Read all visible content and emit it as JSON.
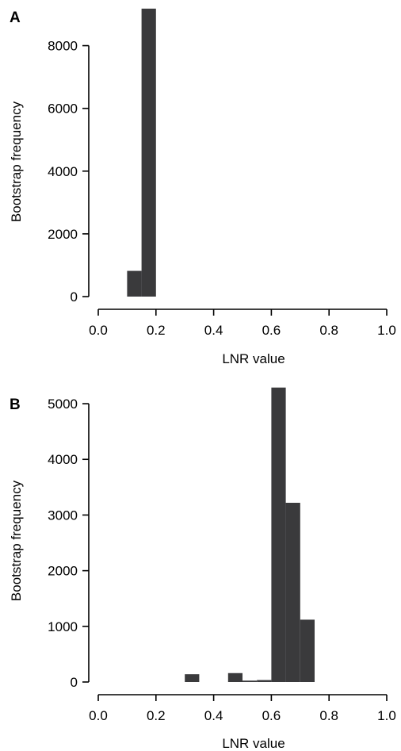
{
  "chart_data": [
    {
      "type": "bar",
      "panel_label": "A",
      "xlabel": "LNR value",
      "ylabel": "Bootstrap frequency",
      "xlim": [
        0,
        1
      ],
      "ylim": [
        0,
        9000
      ],
      "xticks": [
        "0.0",
        "0.2",
        "0.4",
        "0.6",
        "0.8",
        "1.0"
      ],
      "yticks": [
        "0",
        "2000",
        "4000",
        "6000",
        "8000"
      ],
      "bar_color": "#3a3a3c",
      "bins": [
        {
          "x0": 0.1,
          "x1": 0.15,
          "value": 820
        },
        {
          "x0": 0.15,
          "x1": 0.2,
          "value": 9180
        }
      ]
    },
    {
      "type": "bar",
      "panel_label": "B",
      "xlabel": "LNR value",
      "ylabel": "Bootstrap frequency",
      "xlim": [
        0,
        1
      ],
      "ylim": [
        0,
        5300
      ],
      "xticks": [
        "0.0",
        "0.2",
        "0.4",
        "0.6",
        "0.8",
        "1.0"
      ],
      "yticks": [
        "0",
        "1000",
        "2000",
        "3000",
        "4000",
        "5000"
      ],
      "bar_color": "#3a3a3c",
      "bins": [
        {
          "x0": 0.3,
          "x1": 0.35,
          "value": 140
        },
        {
          "x0": 0.45,
          "x1": 0.5,
          "value": 160
        },
        {
          "x0": 0.5,
          "x1": 0.55,
          "value": 25
        },
        {
          "x0": 0.55,
          "x1": 0.6,
          "value": 35
        },
        {
          "x0": 0.6,
          "x1": 0.65,
          "value": 5290
        },
        {
          "x0": 0.65,
          "x1": 0.7,
          "value": 3220
        },
        {
          "x0": 0.7,
          "x1": 0.75,
          "value": 1120
        }
      ]
    }
  ]
}
